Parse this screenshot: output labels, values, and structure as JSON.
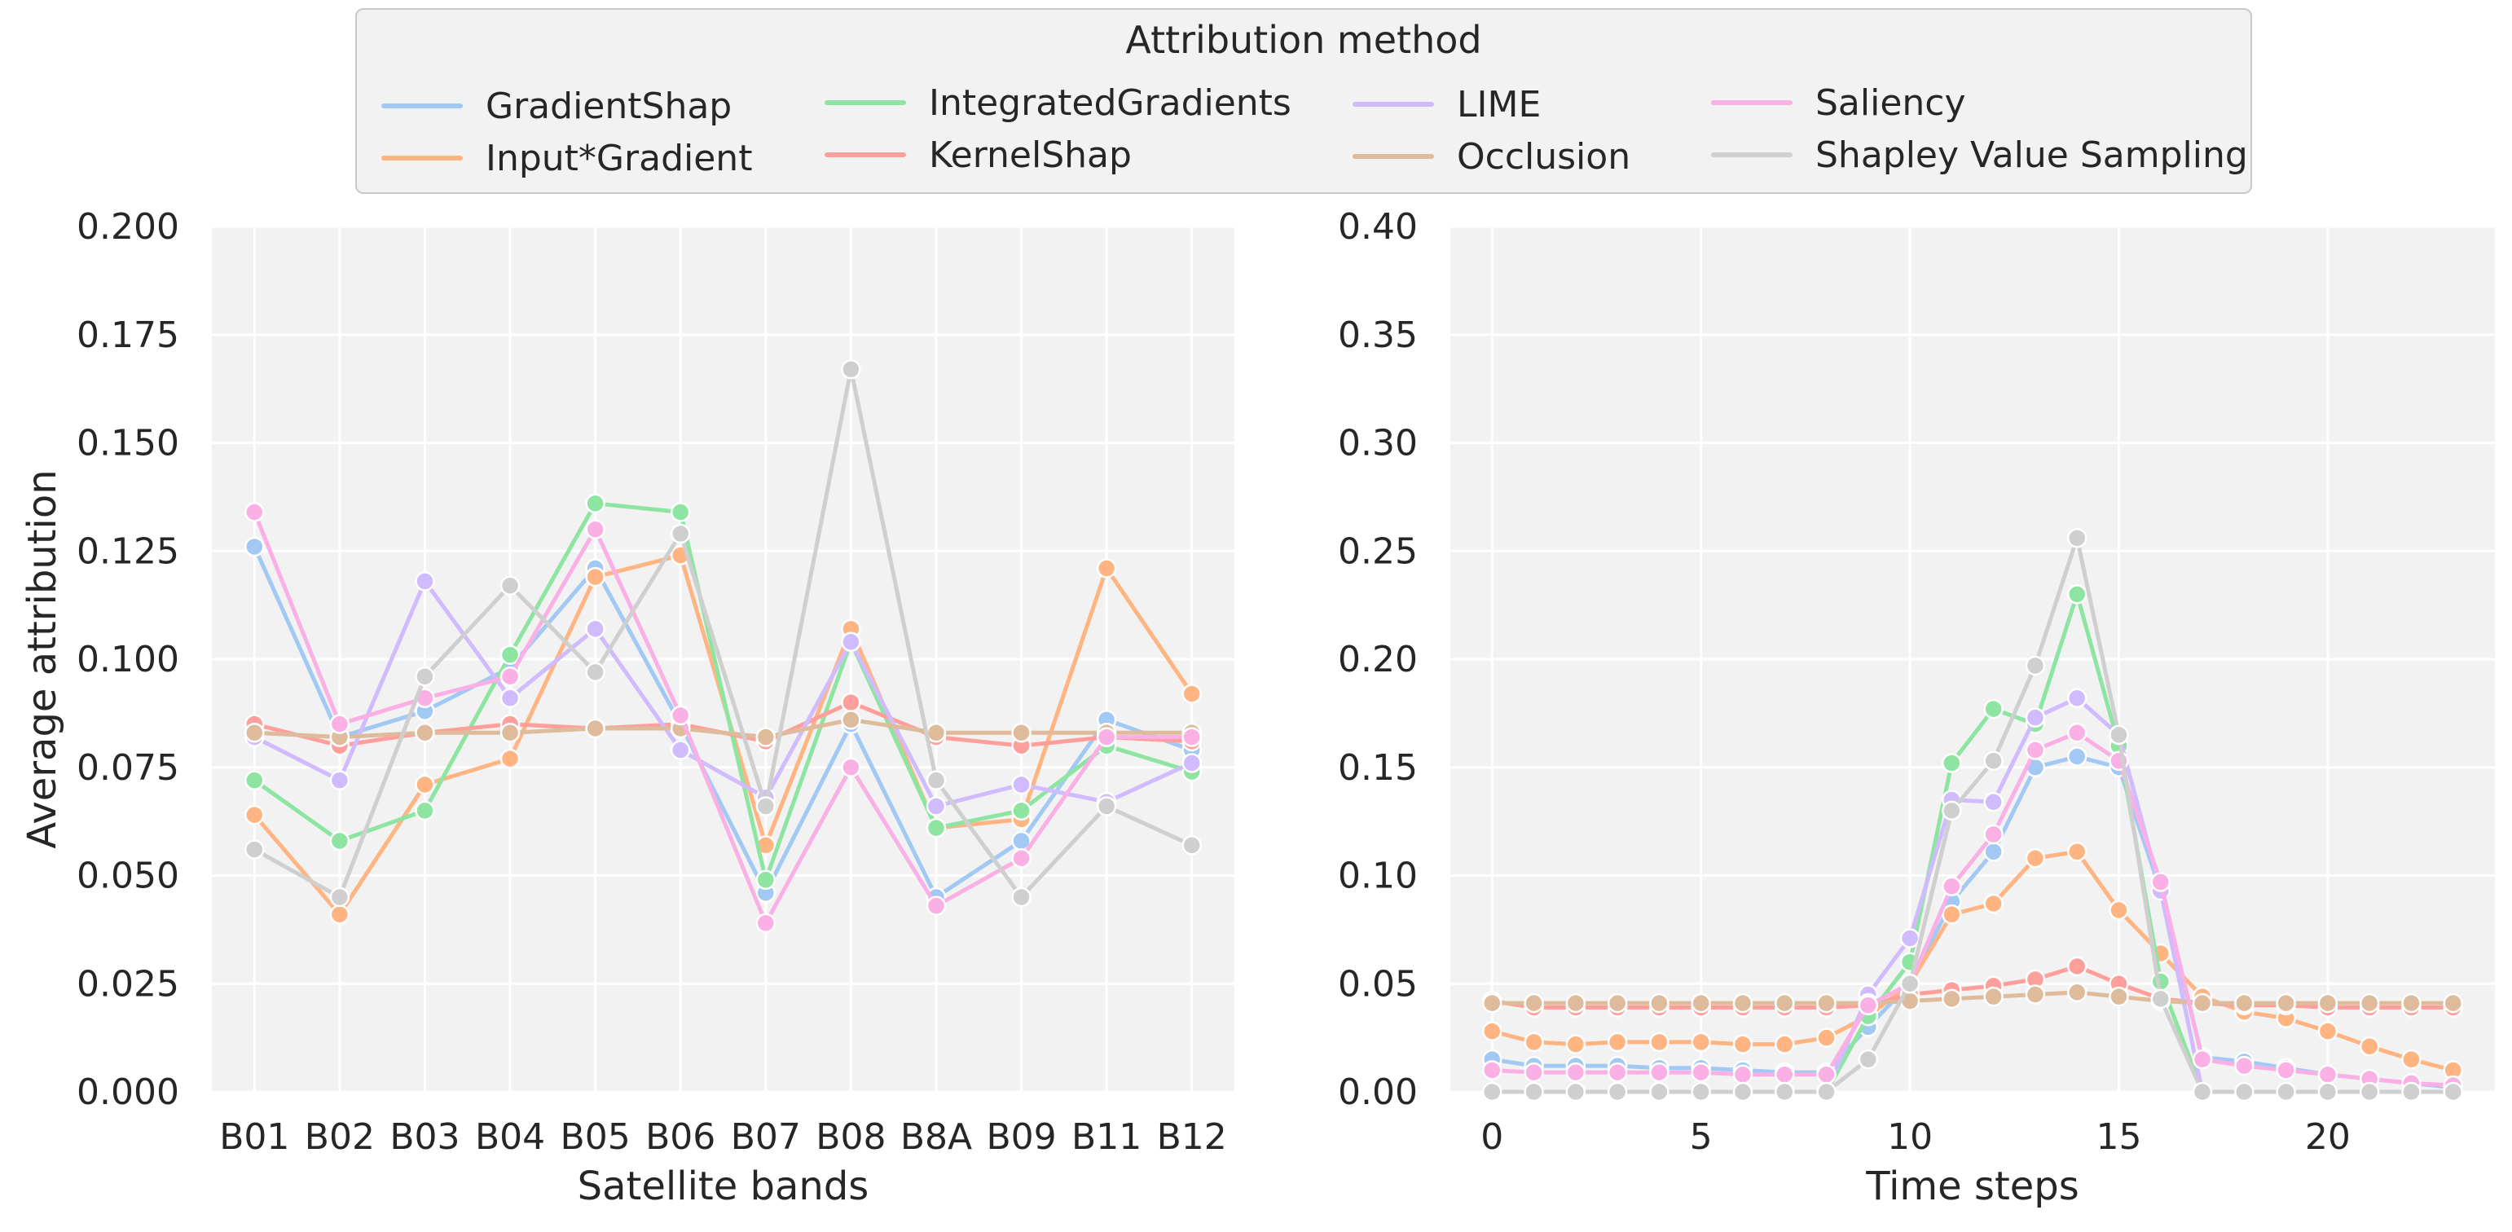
{
  "legend": {
    "title": "Attribution method"
  },
  "methods": [
    {
      "name": "GradientShap",
      "color": "#a1c9f4"
    },
    {
      "name": "Input*Gradient",
      "color": "#ffb482"
    },
    {
      "name": "IntegratedGradients",
      "color": "#8de5a1"
    },
    {
      "name": "KernelShap",
      "color": "#ff9f9b"
    },
    {
      "name": "LIME",
      "color": "#d0bbff"
    },
    {
      "name": "Occlusion",
      "color": "#debb9b"
    },
    {
      "name": "Saliency",
      "color": "#fab0e4"
    },
    {
      "name": "Shapley Value Sampling",
      "color": "#cfcfcf"
    }
  ],
  "chart_data": [
    {
      "type": "line",
      "xlabel": "Satellite bands",
      "ylabel": "Average attribution",
      "ylim": [
        0,
        0.2
      ],
      "yticks": [
        "0.000",
        "0.025",
        "0.050",
        "0.075",
        "0.100",
        "0.125",
        "0.150",
        "0.175",
        "0.200"
      ],
      "categories": [
        "B01",
        "B02",
        "B03",
        "B04",
        "B05",
        "B06",
        "B07",
        "B08",
        "B8A",
        "B09",
        "B11",
        "B12"
      ],
      "series": [
        {
          "name": "GradientShap",
          "values": [
            0.126,
            0.082,
            0.088,
            0.098,
            0.121,
            0.085,
            0.046,
            0.085,
            0.045,
            0.058,
            0.086,
            0.079
          ]
        },
        {
          "name": "Input*Gradient",
          "values": [
            0.064,
            0.041,
            0.071,
            0.077,
            0.119,
            0.124,
            0.057,
            0.107,
            0.061,
            0.063,
            0.121,
            0.092
          ]
        },
        {
          "name": "IntegratedGradients",
          "values": [
            0.072,
            0.058,
            0.065,
            0.101,
            0.136,
            0.134,
            0.049,
            0.104,
            0.061,
            0.065,
            0.08,
            0.074
          ]
        },
        {
          "name": "KernelShap",
          "values": [
            0.085,
            0.08,
            0.083,
            0.085,
            0.084,
            0.085,
            0.081,
            0.09,
            0.082,
            0.08,
            0.082,
            0.081
          ]
        },
        {
          "name": "LIME",
          "values": [
            0.082,
            0.072,
            0.118,
            0.091,
            0.107,
            0.079,
            0.068,
            0.104,
            0.066,
            0.071,
            0.067,
            0.076
          ]
        },
        {
          "name": "Occlusion",
          "values": [
            0.083,
            0.082,
            0.083,
            0.083,
            0.084,
            0.084,
            0.082,
            0.086,
            0.083,
            0.083,
            0.083,
            0.083
          ]
        },
        {
          "name": "Saliency",
          "values": [
            0.134,
            0.085,
            0.091,
            0.096,
            0.13,
            0.087,
            0.039,
            0.075,
            0.043,
            0.054,
            0.082,
            0.082
          ]
        },
        {
          "name": "Shapley Value Sampling",
          "values": [
            0.056,
            0.045,
            0.096,
            0.117,
            0.097,
            0.129,
            0.066,
            0.167,
            0.072,
            0.045,
            0.066,
            0.057
          ]
        }
      ]
    },
    {
      "type": "line",
      "xlabel": "Time steps",
      "ylabel": "",
      "ylim": [
        0,
        0.4
      ],
      "xlim": [
        -1,
        24
      ],
      "xticks": [
        0,
        5,
        10,
        15,
        20
      ],
      "yticks": [
        "0.00",
        "0.05",
        "0.10",
        "0.15",
        "0.20",
        "0.25",
        "0.30",
        "0.35",
        "0.40"
      ],
      "x": [
        0,
        1,
        2,
        3,
        4,
        5,
        6,
        7,
        8,
        9,
        10,
        11,
        12,
        13,
        14,
        15,
        16,
        17,
        18,
        19,
        20,
        21,
        22,
        23
      ],
      "series": [
        {
          "name": "GradientShap",
          "values": [
            0.015,
            0.012,
            0.012,
            0.012,
            0.011,
            0.011,
            0.01,
            0.009,
            0.009,
            0.03,
            0.05,
            0.088,
            0.111,
            0.15,
            0.155,
            0.15,
            0.093,
            0.016,
            0.014,
            0.011,
            0.008,
            0.006,
            0.004,
            0.002
          ]
        },
        {
          "name": "Input*Gradient",
          "values": [
            0.028,
            0.023,
            0.022,
            0.023,
            0.023,
            0.023,
            0.022,
            0.022,
            0.025,
            0.035,
            0.05,
            0.082,
            0.087,
            0.108,
            0.111,
            0.084,
            0.064,
            0.044,
            0.037,
            0.034,
            0.028,
            0.021,
            0.015,
            0.01
          ]
        },
        {
          "name": "IntegratedGradients",
          "values": [
            0.0,
            0.0,
            0.0,
            0.0,
            0.0,
            0.0,
            0.0,
            0.0,
            0.0,
            0.035,
            0.06,
            0.152,
            0.177,
            0.17,
            0.23,
            0.16,
            0.051,
            0.0,
            0.0,
            0.0,
            0.0,
            0.0,
            0.0,
            0.0
          ]
        },
        {
          "name": "KernelShap",
          "values": [
            0.042,
            0.039,
            0.039,
            0.039,
            0.039,
            0.039,
            0.039,
            0.039,
            0.039,
            0.04,
            0.045,
            0.047,
            0.049,
            0.052,
            0.058,
            0.05,
            0.043,
            0.041,
            0.04,
            0.04,
            0.039,
            0.039,
            0.039,
            0.039
          ]
        },
        {
          "name": "LIME",
          "values": [
            0.0,
            0.0,
            0.0,
            0.0,
            0.0,
            0.0,
            0.0,
            0.0,
            0.0,
            0.045,
            0.071,
            0.135,
            0.134,
            0.173,
            0.182,
            0.165,
            0.093,
            0.0,
            0.0,
            0.0,
            0.0,
            0.0,
            0.0,
            0.0
          ]
        },
        {
          "name": "Occlusion",
          "values": [
            0.041,
            0.041,
            0.041,
            0.041,
            0.041,
            0.041,
            0.041,
            0.041,
            0.041,
            0.041,
            0.042,
            0.043,
            0.044,
            0.045,
            0.046,
            0.044,
            0.042,
            0.041,
            0.041,
            0.041,
            0.041,
            0.041,
            0.041,
            0.041
          ]
        },
        {
          "name": "Saliency",
          "values": [
            0.01,
            0.009,
            0.009,
            0.009,
            0.009,
            0.009,
            0.008,
            0.008,
            0.008,
            0.04,
            0.05,
            0.095,
            0.119,
            0.158,
            0.166,
            0.153,
            0.097,
            0.015,
            0.012,
            0.01,
            0.008,
            0.006,
            0.004,
            0.003
          ]
        },
        {
          "name": "Shapley Value Sampling",
          "values": [
            0.0,
            0.0,
            0.0,
            0.0,
            0.0,
            0.0,
            0.0,
            0.0,
            0.0,
            0.015,
            0.05,
            0.13,
            0.153,
            0.197,
            0.256,
            0.165,
            0.043,
            0.0,
            0.0,
            0.0,
            0.0,
            0.0,
            0.0,
            0.0
          ]
        }
      ]
    }
  ]
}
